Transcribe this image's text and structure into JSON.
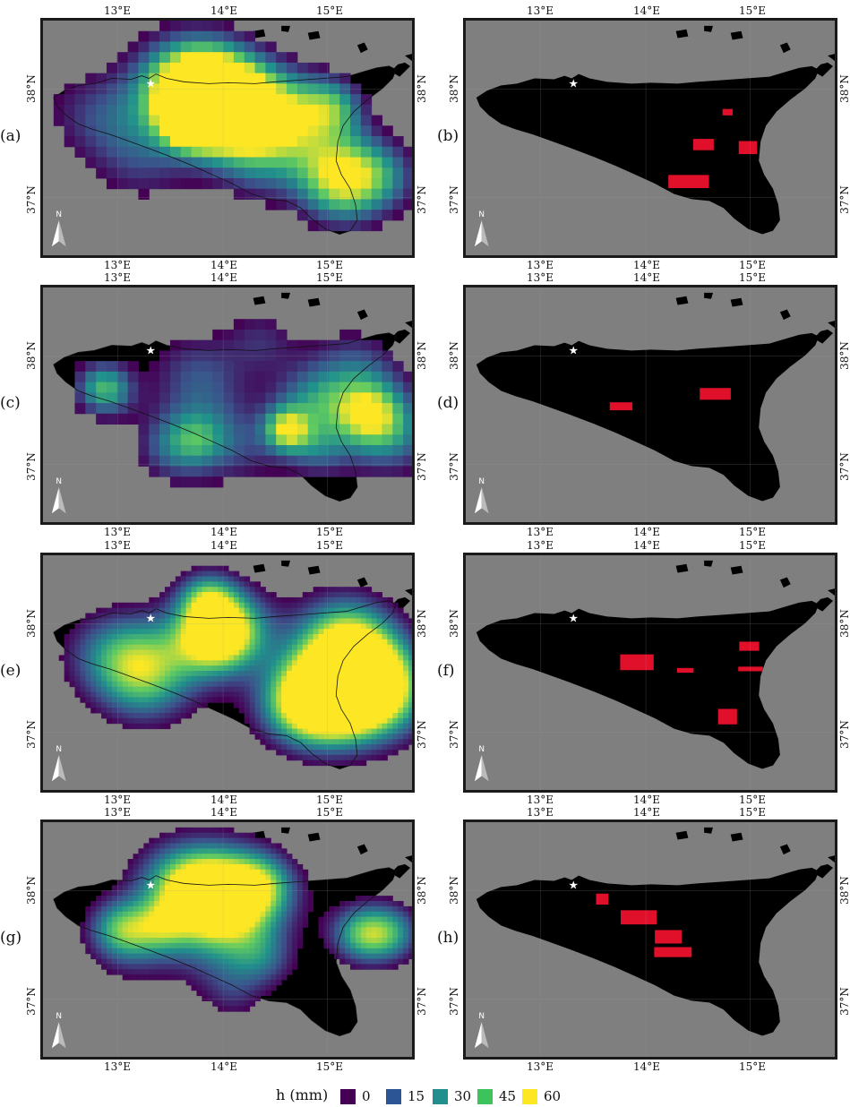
{
  "panels": [
    {
      "id": "a",
      "label": "(a)",
      "kind": "rain",
      "seed": 1
    },
    {
      "id": "b",
      "label": "(b)",
      "kind": "mask",
      "seed": 2
    },
    {
      "id": "c",
      "label": "(c)",
      "kind": "rain",
      "seed": 3
    },
    {
      "id": "d",
      "label": "(d)",
      "kind": "mask",
      "seed": 4
    },
    {
      "id": "e",
      "label": "(e)",
      "kind": "rain",
      "seed": 5
    },
    {
      "id": "f",
      "label": "(f)",
      "kind": "mask",
      "seed": 6
    },
    {
      "id": "g",
      "label": "(g)",
      "kind": "rain",
      "seed": 7
    },
    {
      "id": "h",
      "label": "(h)",
      "kind": "mask",
      "seed": 8
    }
  ],
  "axes": {
    "lon_ticks": [
      "13°E",
      "14°E",
      "15°E"
    ],
    "lat_ticks": [
      "38°N",
      "37°N"
    ]
  },
  "north_arrow_label": "N",
  "legend": {
    "title": "h (mm)",
    "items": [
      {
        "label": "0",
        "color": "#440154"
      },
      {
        "label": "15",
        "color": "#2c5596"
      },
      {
        "label": "30",
        "color": "#21908c"
      },
      {
        "label": "45",
        "color": "#3cc35c"
      },
      {
        "label": "60",
        "color": "#fde725"
      }
    ]
  },
  "colors": {
    "sea": "#7f7f7f",
    "land": "#000000",
    "mask": "#e0102a",
    "star": "#ffffff",
    "frame": "#1a1a1a"
  }
}
